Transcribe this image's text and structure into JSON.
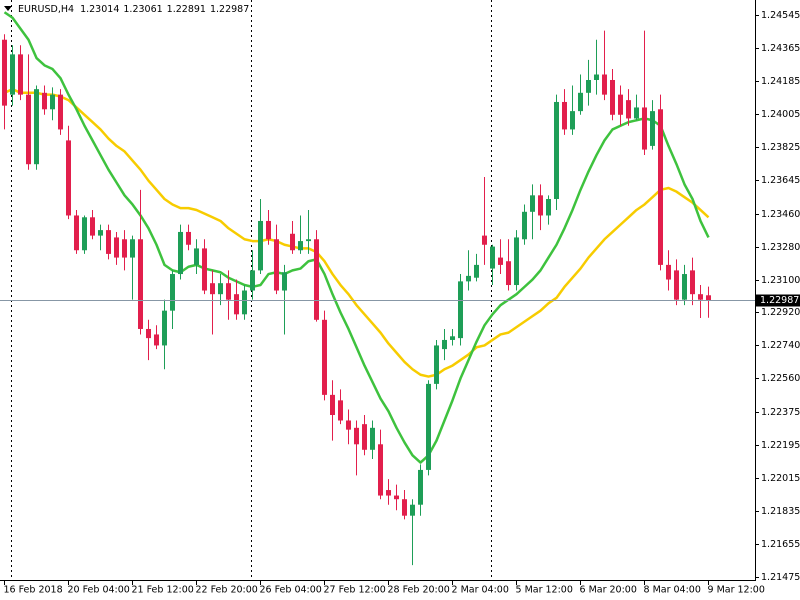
{
  "chart_data": {
    "type": "candlestick",
    "title": "EURUSD,H4",
    "categories": [
      "16 Feb 2018",
      null,
      null,
      null,
      null,
      null,
      null,
      null,
      "20 Feb 04:00",
      null,
      null,
      null,
      null,
      null,
      null,
      null,
      "21 Feb 12:00",
      null,
      null,
      null,
      null,
      null,
      null,
      null,
      "22 Feb 20:00",
      null,
      null,
      null,
      null,
      null,
      null,
      null,
      "26 Feb 04:00",
      null,
      null,
      null,
      null,
      null,
      null,
      null,
      "27 Feb 12:00",
      null,
      null,
      null,
      null,
      null,
      null,
      null,
      "28 Feb 20:00",
      null,
      null,
      null,
      null,
      null,
      null,
      null,
      "2 Mar 04:00",
      null,
      null,
      null,
      null,
      null,
      null,
      null,
      "5 Mar 12:00",
      null,
      null,
      null,
      null,
      null,
      null,
      null,
      "6 Mar 20:00",
      null,
      null,
      null,
      null,
      null,
      null,
      null,
      "8 Mar 04:00",
      null,
      null,
      null,
      null,
      null,
      null,
      null,
      "9 Mar 12:00"
    ],
    "open": [
      1.2441,
      1.2411,
      1.2433,
      1.2411,
      1.2373,
      1.2412,
      1.2403,
      1.2411,
      1.2386,
      1.2345,
      1.2326,
      1.2344,
      1.2334,
      1.2337,
      1.2333,
      1.2332,
      1.2322,
      1.2332,
      1.2283,
      1.228,
      1.2274,
      1.2293,
      1.2313,
      1.2336,
      1.2318,
      1.2327,
      1.2308,
      1.2302,
      1.2308,
      1.2302,
      1.2291,
      1.2304,
      1.2315,
      1.2342,
      1.2332,
      1.2304,
      1.2335,
      1.2326,
      1.2331,
      1.2332,
      1.2288,
      1.2247,
      1.2244,
      1.2233,
      1.2229,
      1.2231,
      1.2217,
      1.222,
      1.2195,
      1.2192,
      1.219,
      1.2181,
      1.2187,
      1.2206,
      1.2253,
      1.2272,
      1.2277,
      1.2278,
      1.2309,
      1.2311,
      1.2334,
      1.2316,
      1.2322,
      1.232,
      1.2307,
      1.2332,
      1.2347,
      1.2356,
      1.2345,
      1.2354,
      1.2407,
      1.2392,
      1.2402,
      1.2412,
      1.2419,
      1.2422,
      1.2419,
      1.2411,
      1.2408,
      1.2398,
      1.2404,
      1.2383,
      1.2403,
      1.2318,
      1.2315,
      1.2299,
      1.2315,
      1.2302,
      1.23014
    ],
    "high": [
      1.2444,
      1.2438,
      1.2438,
      1.2433,
      1.2416,
      1.2416,
      1.2415,
      1.2414,
      1.2394,
      1.2348,
      1.2345,
      1.2348,
      1.234,
      1.234,
      1.2336,
      1.2337,
      1.2334,
      1.2359,
      1.2288,
      1.2285,
      1.2299,
      1.2315,
      1.234,
      1.234,
      1.2332,
      1.2332,
      1.2315,
      1.2313,
      1.2315,
      1.231,
      1.2307,
      1.2326,
      1.2354,
      1.2348,
      1.234,
      1.2318,
      1.2342,
      1.2345,
      1.2348,
      1.2337,
      1.2293,
      1.2255,
      1.225,
      1.2239,
      1.2233,
      1.2236,
      1.2233,
      1.2228,
      1.2201,
      1.2198,
      1.2195,
      1.219,
      1.2209,
      1.2255,
      1.2277,
      1.2283,
      1.2283,
      1.2313,
      1.2326,
      1.2324,
      1.2366,
      1.2329,
      1.2332,
      1.2332,
      1.2337,
      1.2351,
      1.2362,
      1.2362,
      1.2356,
      1.2411,
      1.2414,
      1.2416,
      1.2422,
      1.243,
      1.2441,
      1.2446,
      1.2425,
      1.2416,
      1.2414,
      1.2411,
      1.2446,
      1.2408,
      1.2411,
      1.2326,
      1.2321,
      1.2318,
      1.2322,
      1.2307,
      1.23061
    ],
    "low": [
      1.2392,
      1.2405,
      1.2408,
      1.237,
      1.237,
      1.24,
      1.2397,
      1.2389,
      1.2343,
      1.2324,
      1.2324,
      1.2332,
      1.2326,
      1.2321,
      1.2318,
      1.2315,
      1.2299,
      1.228,
      1.2266,
      1.2272,
      1.2261,
      1.2283,
      1.231,
      1.2326,
      1.2313,
      1.2302,
      1.228,
      1.2296,
      1.2288,
      1.2288,
      1.2288,
      1.2299,
      1.2313,
      1.2329,
      1.2302,
      1.228,
      1.2324,
      1.2324,
      1.2324,
      1.2287,
      1.2244,
      1.2222,
      1.2231,
      1.222,
      1.2203,
      1.2214,
      1.2212,
      1.219,
      1.2187,
      1.2184,
      1.2179,
      1.2154,
      1.2181,
      1.2203,
      1.225,
      1.2266,
      1.2274,
      1.2274,
      1.2304,
      1.2309,
      1.2318,
      1.2307,
      1.2313,
      1.2304,
      1.2304,
      1.2329,
      1.2332,
      1.2337,
      1.234,
      1.2348,
      1.2389,
      1.2389,
      1.24,
      1.2405,
      1.2411,
      1.2408,
      1.2397,
      1.2394,
      1.2394,
      1.2397,
      1.2378,
      1.2381,
      1.2315,
      1.2304,
      1.2296,
      1.2296,
      1.2296,
      1.2289,
      1.22891
    ],
    "close": [
      1.2405,
      1.2433,
      1.2411,
      1.2373,
      1.2414,
      1.2403,
      1.2411,
      1.2392,
      1.2345,
      1.2326,
      1.2344,
      1.2334,
      1.2337,
      1.2324,
      1.2322,
      1.2322,
      1.2332,
      1.2283,
      1.2278,
      1.2274,
      1.2293,
      1.2313,
      1.2336,
      1.2329,
      1.2327,
      1.2304,
      1.2302,
      1.2308,
      1.2299,
      1.2291,
      1.2304,
      1.2315,
      1.2342,
      1.2332,
      1.2304,
      1.2314,
      1.2326,
      1.2331,
      1.2332,
      1.2288,
      1.2247,
      1.2236,
      1.2233,
      1.2228,
      1.222,
      1.2217,
      1.2229,
      1.2192,
      1.2192,
      1.219,
      1.2181,
      1.2187,
      1.2206,
      1.2253,
      1.2274,
      1.2277,
      1.2279,
      1.2309,
      1.2312,
      1.2318,
      1.2329,
      1.2328,
      1.2318,
      1.2307,
      1.2333,
      1.2347,
      1.2356,
      1.2345,
      1.2354,
      1.2407,
      1.2392,
      1.2402,
      1.2412,
      1.2419,
      1.2422,
      1.2411,
      1.24,
      1.24,
      1.2398,
      1.2404,
      1.2381,
      1.2402,
      1.2318,
      1.231,
      1.2299,
      1.2313,
      1.2302,
      1.2299,
      1.22987
    ],
    "up_color": "#1e9e57",
    "down_color": "#e21f4c",
    "lines": [
      {
        "color": "#f7cc00",
        "values": [
          1.2412,
          1.2414,
          1.2412,
          1.2412,
          1.2412,
          1.2411,
          1.2411,
          1.241,
          1.2408,
          1.2404,
          1.24,
          1.2396,
          1.2392,
          1.2387,
          1.2383,
          1.238,
          1.2375,
          1.237,
          1.2364,
          1.2359,
          1.2354,
          1.2351,
          1.2349,
          1.2349,
          1.2348,
          1.2346,
          1.2344,
          1.2342,
          1.2338,
          1.2335,
          1.2332,
          1.2331,
          1.2331,
          1.2332,
          1.2331,
          1.2329,
          1.2328,
          1.2327,
          1.2327,
          1.2325,
          1.232,
          1.2313,
          1.2307,
          1.2302,
          1.2296,
          1.2291,
          1.2286,
          1.2281,
          1.2275,
          1.227,
          1.2265,
          1.2261,
          1.2258,
          1.2257,
          1.2258,
          1.2261,
          1.2263,
          1.2266,
          1.2269,
          1.2273,
          1.2274,
          1.2277,
          1.228,
          1.2281,
          1.2284,
          1.2287,
          1.229,
          1.2293,
          1.2297,
          1.23,
          1.2306,
          1.2311,
          1.2316,
          1.2322,
          1.2327,
          1.2332,
          1.2336,
          1.234,
          1.2344,
          1.2348,
          1.2351,
          1.2355,
          1.2359,
          1.236,
          1.2358,
          1.2355,
          1.2352,
          1.2348,
          1.2344
        ]
      },
      {
        "color": "#3ec23e",
        "values": [
          1.2456,
          1.2453,
          1.2447,
          1.2441,
          1.2431,
          1.2427,
          1.2425,
          1.242,
          1.2411,
          1.2403,
          1.2394,
          1.2386,
          1.2378,
          1.237,
          1.2363,
          1.2356,
          1.2351,
          1.2345,
          1.2338,
          1.2329,
          1.2318,
          1.2315,
          1.2314,
          1.2317,
          1.2318,
          1.2316,
          1.2315,
          1.2314,
          1.2311,
          1.2309,
          1.2307,
          1.2306,
          1.2307,
          1.2313,
          1.2314,
          1.2313,
          1.2315,
          1.2316,
          1.232,
          1.2321,
          1.2313,
          1.2302,
          1.2292,
          1.2283,
          1.2273,
          1.2263,
          1.2254,
          1.2245,
          1.2238,
          1.2229,
          1.2221,
          1.2214,
          1.221,
          1.2214,
          1.2222,
          1.2233,
          1.2244,
          1.2256,
          1.2266,
          1.2276,
          1.2285,
          1.2291,
          1.2296,
          1.2299,
          1.2302,
          1.2306,
          1.231,
          1.2315,
          1.2322,
          1.2329,
          1.2338,
          1.2348,
          1.2359,
          1.2369,
          1.2378,
          1.2386,
          1.2392,
          1.2394,
          1.2396,
          1.2397,
          1.2398,
          1.2397,
          1.2394,
          1.2383,
          1.2373,
          1.2362,
          1.2354,
          1.2342,
          1.2333
        ]
      }
    ],
    "ylim": [
      1.21415,
      1.24627
    ],
    "yticks": [
      1.24545,
      1.24365,
      1.24185,
      1.24005,
      1.23825,
      1.23645,
      {
        "value": 1.2346,
        "label": "1.23460"
      },
      {
        "value": 1.2328,
        "label": "1.23280"
      },
      {
        "value": 1.231,
        "label": "1.23100"
      },
      {
        "value": 1.2292,
        "label": "1.22920"
      },
      {
        "value": 1.2274,
        "label": "1.22740"
      },
      {
        "value": 1.2256,
        "label": "1.22560"
      },
      1.22375,
      1.22195,
      1.22015,
      1.21835,
      1.21655,
      1.21475
    ],
    "grid": false
  }
}
